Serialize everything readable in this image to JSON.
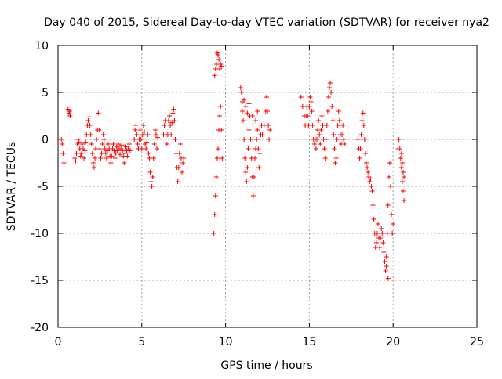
{
  "chart_data": {
    "type": "scatter",
    "title": "Day 040 of 2015, Sidereal Day-to-day VTEC variation (SDTVAR) for receiver nya2",
    "xlabel": "GPS time / hours",
    "ylabel": "SDTVAR / TECUs",
    "xlim": [
      0,
      25
    ],
    "ylim": [
      -20,
      10
    ],
    "xticks": [
      0,
      5,
      10,
      15,
      20,
      25
    ],
    "yticks": [
      -20,
      -15,
      -10,
      -5,
      0,
      5,
      10
    ],
    "grid": true,
    "marker": "+",
    "marker_color": "#ff0000",
    "series": [
      {
        "name": "nya2",
        "points": [
          [
            0.2,
            0
          ],
          [
            0.25,
            -0.5
          ],
          [
            0.3,
            -1.5
          ],
          [
            0.35,
            -2.5
          ],
          [
            0.6,
            3.2
          ],
          [
            0.65,
            2.8
          ],
          [
            0.7,
            3
          ],
          [
            0.72,
            2.5
          ],
          [
            1.0,
            -2
          ],
          [
            1.05,
            -2.3
          ],
          [
            1.1,
            -1.5
          ],
          [
            1.15,
            -0.5
          ],
          [
            1.2,
            0
          ],
          [
            1.25,
            -0.3
          ],
          [
            1.3,
            -1
          ],
          [
            1.35,
            -1.8
          ],
          [
            1.4,
            -1.5
          ],
          [
            1.45,
            -0.5
          ],
          [
            1.5,
            -1
          ],
          [
            1.55,
            -2
          ],
          [
            1.6,
            -1.2
          ],
          [
            1.65,
            -0.3
          ],
          [
            1.7,
            0.5
          ],
          [
            1.75,
            1.5
          ],
          [
            1.8,
            2
          ],
          [
            1.85,
            2.4
          ],
          [
            1.9,
            1.5
          ],
          [
            1.95,
            0.5
          ],
          [
            2.0,
            -0.5
          ],
          [
            2.05,
            -1.5
          ],
          [
            2.1,
            -2.5
          ],
          [
            2.15,
            -3
          ],
          [
            2.2,
            -2
          ],
          [
            2.25,
            -1
          ],
          [
            2.3,
            0
          ],
          [
            2.35,
            1
          ],
          [
            2.4,
            2.8
          ],
          [
            2.45,
            1
          ],
          [
            2.5,
            -1
          ],
          [
            2.55,
            -2
          ],
          [
            2.6,
            -1.5
          ],
          [
            2.65,
            -0.5
          ],
          [
            2.7,
            0.5
          ],
          [
            2.75,
            0
          ],
          [
            2.8,
            -1
          ],
          [
            2.85,
            -1.5
          ],
          [
            2.9,
            -2
          ],
          [
            2.95,
            -1.2
          ],
          [
            3.0,
            -0.5
          ],
          [
            3.05,
            -1
          ],
          [
            3.1,
            -1.8
          ],
          [
            3.15,
            -2.5
          ],
          [
            3.2,
            -1.8
          ],
          [
            3.25,
            -1
          ],
          [
            3.3,
            -0.5
          ],
          [
            3.35,
            -1.2
          ],
          [
            3.4,
            -2
          ],
          [
            3.45,
            -1.5
          ],
          [
            3.5,
            -0.8
          ],
          [
            3.55,
            -1.2
          ],
          [
            3.6,
            -0.5
          ],
          [
            3.65,
            -1
          ],
          [
            3.7,
            -1.6
          ],
          [
            3.75,
            -1
          ],
          [
            3.8,
            -0.6
          ],
          [
            3.85,
            -1.2
          ],
          [
            3.9,
            -1.8
          ],
          [
            3.95,
            -2.5
          ],
          [
            4.0,
            -1.5
          ],
          [
            4.05,
            -0.8
          ],
          [
            4.1,
            -1.2
          ],
          [
            4.15,
            -1.8
          ],
          [
            4.2,
            -1
          ],
          [
            4.25,
            -0.5
          ],
          [
            4.3,
            -1.2
          ],
          [
            4.55,
            0
          ],
          [
            4.6,
            1
          ],
          [
            4.65,
            1.5
          ],
          [
            4.7,
            0.5
          ],
          [
            4.75,
            -0.5
          ],
          [
            4.8,
            -1
          ],
          [
            4.85,
            0
          ],
          [
            4.9,
            1
          ],
          [
            4.95,
            0
          ],
          [
            5.0,
            -1
          ],
          [
            5.05,
            0.5
          ],
          [
            5.1,
            1.5
          ],
          [
            5.15,
            0.8
          ],
          [
            5.2,
            -0.5
          ],
          [
            5.25,
            -1
          ],
          [
            5.3,
            -0.3
          ],
          [
            5.35,
            0.5
          ],
          [
            5.4,
            -1.5
          ],
          [
            5.45,
            -2
          ],
          [
            5.5,
            -3.5
          ],
          [
            5.55,
            -4.5
          ],
          [
            5.6,
            -5
          ],
          [
            5.65,
            -4
          ],
          [
            5.7,
            -2
          ],
          [
            5.75,
            -0.5
          ],
          [
            5.8,
            1
          ],
          [
            5.85,
            0.5
          ],
          [
            5.9,
            -1
          ],
          [
            5.95,
            0.2
          ],
          [
            6.3,
            0.5
          ],
          [
            6.35,
            1.5
          ],
          [
            6.4,
            2
          ],
          [
            6.45,
            0.5
          ],
          [
            6.5,
            -0.5
          ],
          [
            6.55,
            0.5
          ],
          [
            6.6,
            2
          ],
          [
            6.65,
            2.5
          ],
          [
            6.7,
            1.5
          ],
          [
            6.75,
            0.5
          ],
          [
            6.8,
            1.8
          ],
          [
            6.85,
            2.8
          ],
          [
            6.9,
            3.2
          ],
          [
            6.95,
            2
          ],
          [
            7.0,
            0
          ],
          [
            7.05,
            -1.5
          ],
          [
            7.1,
            -3
          ],
          [
            7.15,
            -4.5
          ],
          [
            7.2,
            -3
          ],
          [
            7.25,
            -1.5
          ],
          [
            7.3,
            -0.5
          ],
          [
            7.35,
            -2
          ],
          [
            7.4,
            -3.5
          ],
          [
            7.45,
            -2.5
          ],
          [
            7.5,
            -2
          ],
          [
            9.3,
            -10
          ],
          [
            9.35,
            -8
          ],
          [
            9.4,
            -6
          ],
          [
            9.45,
            -4
          ],
          [
            9.5,
            -2
          ],
          [
            9.55,
            -1
          ],
          [
            9.6,
            1
          ],
          [
            9.65,
            2.5
          ],
          [
            9.7,
            3.5
          ],
          [
            9.75,
            1
          ],
          [
            9.8,
            -2
          ],
          [
            9.35,
            6.8
          ],
          [
            9.4,
            7.5
          ],
          [
            9.45,
            8
          ],
          [
            9.5,
            9.2
          ],
          [
            9.55,
            9
          ],
          [
            9.6,
            8.5
          ],
          [
            9.65,
            7.5
          ],
          [
            9.7,
            8
          ],
          [
            9.75,
            7.8
          ],
          [
            10.9,
            5.5
          ],
          [
            10.95,
            5
          ],
          [
            11.0,
            4
          ],
          [
            11.05,
            2
          ],
          [
            11.1,
            0
          ],
          [
            11.15,
            -2
          ],
          [
            11.2,
            -3.5
          ],
          [
            11.25,
            -4.5
          ],
          [
            11.3,
            -3
          ],
          [
            11.35,
            -1
          ],
          [
            11.4,
            1
          ],
          [
            11.45,
            2.5
          ],
          [
            11.5,
            0
          ],
          [
            11.55,
            -2
          ],
          [
            11.6,
            -4
          ],
          [
            11.65,
            -6
          ],
          [
            11.7,
            -4
          ],
          [
            11.75,
            -2
          ],
          [
            11.8,
            -1
          ],
          [
            11.85,
            0
          ],
          [
            11.9,
            1
          ],
          [
            11.95,
            -1
          ],
          [
            12.0,
            -3
          ],
          [
            12.05,
            -1.5
          ],
          [
            12.1,
            0.5
          ],
          [
            12.15,
            1.5
          ],
          [
            12.2,
            0.5
          ],
          [
            12.3,
            1.5
          ],
          [
            12.4,
            3
          ],
          [
            12.45,
            4.5
          ],
          [
            12.5,
            3
          ],
          [
            12.55,
            1.5
          ],
          [
            12.6,
            0
          ],
          [
            12.65,
            1
          ],
          [
            11.0,
            3
          ],
          [
            11.1,
            4.2
          ],
          [
            11.2,
            3.5
          ],
          [
            11.3,
            2.8
          ],
          [
            11.4,
            3.8
          ],
          [
            11.6,
            2.5
          ],
          [
            11.8,
            2
          ],
          [
            11.9,
            3
          ],
          [
            14.5,
            4.5
          ],
          [
            14.6,
            3.5
          ],
          [
            14.7,
            2.5
          ],
          [
            14.75,
            1.5
          ],
          [
            14.8,
            2.5
          ],
          [
            14.85,
            3.5
          ],
          [
            14.9,
            2.5
          ],
          [
            14.95,
            1.5
          ],
          [
            15.0,
            3.5
          ],
          [
            15.05,
            4.5
          ],
          [
            15.1,
            4
          ],
          [
            15.15,
            3
          ],
          [
            15.2,
            1.5
          ],
          [
            15.25,
            0
          ],
          [
            15.3,
            -0.5
          ],
          [
            15.35,
            0
          ],
          [
            15.4,
            -1
          ],
          [
            15.45,
            0
          ],
          [
            15.5,
            1
          ],
          [
            15.55,
            2
          ],
          [
            15.6,
            0.5
          ],
          [
            15.65,
            -0.5
          ],
          [
            15.7,
            1
          ],
          [
            15.75,
            2.5
          ],
          [
            15.8,
            1.5
          ],
          [
            15.85,
            0
          ],
          [
            15.9,
            -1
          ],
          [
            15.95,
            -2
          ],
          [
            16.0,
            0
          ],
          [
            16.05,
            1.5
          ],
          [
            16.1,
            3
          ],
          [
            16.15,
            4.5
          ],
          [
            16.2,
            5.5
          ],
          [
            16.25,
            6
          ],
          [
            16.3,
            5
          ],
          [
            16.35,
            3.5
          ],
          [
            16.4,
            2
          ],
          [
            16.45,
            0.5
          ],
          [
            16.5,
            -1
          ],
          [
            16.55,
            -2.5
          ],
          [
            16.6,
            -2
          ],
          [
            16.65,
            0
          ],
          [
            16.7,
            1.5
          ],
          [
            16.75,
            3
          ],
          [
            16.8,
            2
          ],
          [
            16.85,
            0.5
          ],
          [
            16.9,
            -0.5
          ],
          [
            16.95,
            0.5
          ],
          [
            17.0,
            1.5
          ],
          [
            17.05,
            0
          ],
          [
            17.1,
            -0.5
          ],
          [
            17.9,
            0
          ],
          [
            17.95,
            -1
          ],
          [
            18.0,
            -2
          ],
          [
            18.05,
            -1
          ],
          [
            18.1,
            0.5
          ],
          [
            18.15,
            2
          ],
          [
            18.2,
            2.8
          ],
          [
            18.25,
            1.5
          ],
          [
            18.3,
            0
          ],
          [
            18.35,
            -1.5
          ],
          [
            18.4,
            -2.5
          ],
          [
            18.45,
            -3
          ],
          [
            18.5,
            -3.5
          ],
          [
            18.55,
            -4
          ],
          [
            18.6,
            -4.5
          ],
          [
            18.65,
            -4.2
          ],
          [
            18.7,
            -5
          ],
          [
            18.75,
            -5.5
          ],
          [
            18.8,
            -7
          ],
          [
            18.85,
            -8.5
          ],
          [
            18.9,
            -10
          ],
          [
            18.95,
            -11.5
          ],
          [
            19.0,
            -11
          ],
          [
            19.05,
            -10
          ],
          [
            19.1,
            -9
          ],
          [
            19.15,
            -10.5
          ],
          [
            19.2,
            -11.5
          ],
          [
            19.25,
            -10.5
          ],
          [
            19.3,
            -9.5
          ],
          [
            19.35,
            -10
          ],
          [
            19.4,
            -11
          ],
          [
            19.45,
            -12
          ],
          [
            19.5,
            -13
          ],
          [
            19.55,
            -14
          ],
          [
            19.6,
            -12.5
          ],
          [
            19.65,
            -10
          ],
          [
            19.7,
            -7
          ],
          [
            19.75,
            -4
          ],
          [
            19.8,
            -2.5
          ],
          [
            19.85,
            -5
          ],
          [
            19.9,
            -8
          ],
          [
            19.95,
            -10
          ],
          [
            20.0,
            -9
          ],
          [
            19.7,
            -14.8
          ],
          [
            19.6,
            -13.5
          ],
          [
            20.3,
            -1
          ],
          [
            20.35,
            0
          ],
          [
            20.4,
            -1
          ],
          [
            20.45,
            -2
          ],
          [
            20.5,
            -3
          ],
          [
            20.55,
            -4.5
          ],
          [
            20.6,
            -5.5
          ],
          [
            20.65,
            -6.5
          ],
          [
            20.5,
            -1.5
          ],
          [
            20.55,
            -2.5
          ],
          [
            20.6,
            -3.5
          ],
          [
            20.65,
            -4
          ]
        ]
      }
    ]
  }
}
